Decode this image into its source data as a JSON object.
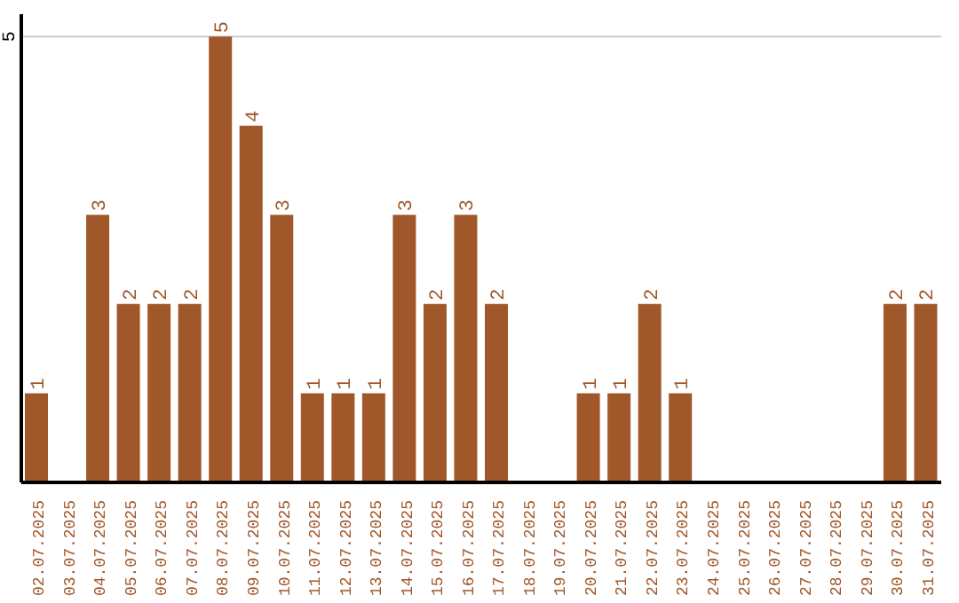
{
  "chart_data": {
    "type": "bar",
    "categories": [
      "02.07.2025",
      "03.07.2025",
      "04.07.2025",
      "05.07.2025",
      "06.07.2025",
      "07.07.2025",
      "08.07.2025",
      "09.07.2025",
      "10.07.2025",
      "11.07.2025",
      "12.07.2025",
      "13.07.2025",
      "14.07.2025",
      "15.07.2025",
      "16.07.2025",
      "17.07.2025",
      "18.07.2025",
      "19.07.2025",
      "20.07.2025",
      "21.07.2025",
      "22.07.2025",
      "23.07.2025",
      "24.07.2025",
      "25.07.2025",
      "26.07.2025",
      "27.07.2025",
      "28.07.2025",
      "29.07.2025",
      "30.07.2025",
      "31.07.2025"
    ],
    "values": [
      1,
      0,
      3,
      2,
      2,
      2,
      5,
      4,
      3,
      1,
      1,
      1,
      3,
      2,
      3,
      2,
      0,
      0,
      1,
      1,
      2,
      1,
      0,
      0,
      0,
      0,
      0,
      0,
      2,
      2
    ],
    "value_labels": [
      "1",
      null,
      "3",
      "2",
      "2",
      "2",
      "5",
      "4",
      "3",
      "1",
      "1",
      "1",
      "3",
      "2",
      "3",
      "2",
      null,
      null,
      "1",
      "1",
      "2",
      "1",
      null,
      null,
      null,
      null,
      null,
      null,
      "2",
      "2"
    ],
    "color": "#a0582a",
    "ylim": [
      0,
      5.25
    ],
    "yticks": [
      5
    ],
    "grid": "y"
  }
}
